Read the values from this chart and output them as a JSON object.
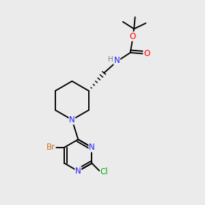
{
  "background_color": "#ebebeb",
  "atom_colors": {
    "C": "#000000",
    "N": "#2020ff",
    "O": "#ff0000",
    "Br": "#c87020",
    "Cl": "#00aa00",
    "H": "#708090"
  },
  "bond_color": "#000000",
  "figsize": [
    3.0,
    3.0
  ],
  "dpi": 100
}
